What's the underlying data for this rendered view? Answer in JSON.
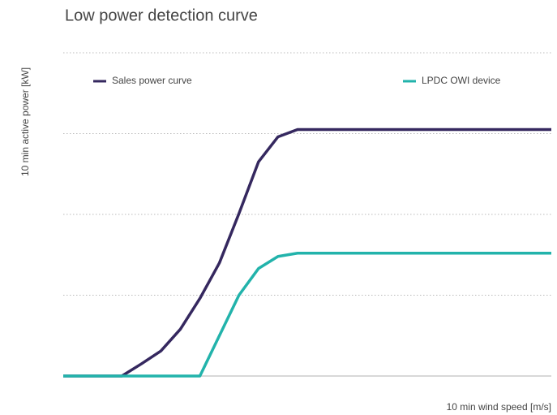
{
  "chart_data": {
    "type": "line",
    "title": "Low power detection curve",
    "xlabel": "10 min wind speed [m/s]",
    "ylabel": "10 min active power [kW]",
    "x": [
      0,
      3,
      4,
      5,
      6,
      7,
      8,
      9,
      10,
      11,
      12,
      25
    ],
    "series": [
      {
        "name": "Sales power curve",
        "color": "#35285f",
        "values": [
          0,
          0,
          0.15,
          0.31,
          0.58,
          0.96,
          1.4,
          2.01,
          2.65,
          2.96,
          3.05,
          3.05
        ]
      },
      {
        "name": "LPDC OWI device",
        "color": "#22b3ab",
        "values": [
          0,
          0,
          0,
          0,
          0,
          0,
          0.5,
          1.0,
          1.33,
          1.48,
          1.52,
          1.52
        ]
      }
    ],
    "xlim": [
      0,
      25
    ],
    "ylim": [
      0,
      4
    ],
    "yticks": [
      0,
      1,
      2,
      3,
      4
    ],
    "grid": true,
    "legend": "top"
  }
}
